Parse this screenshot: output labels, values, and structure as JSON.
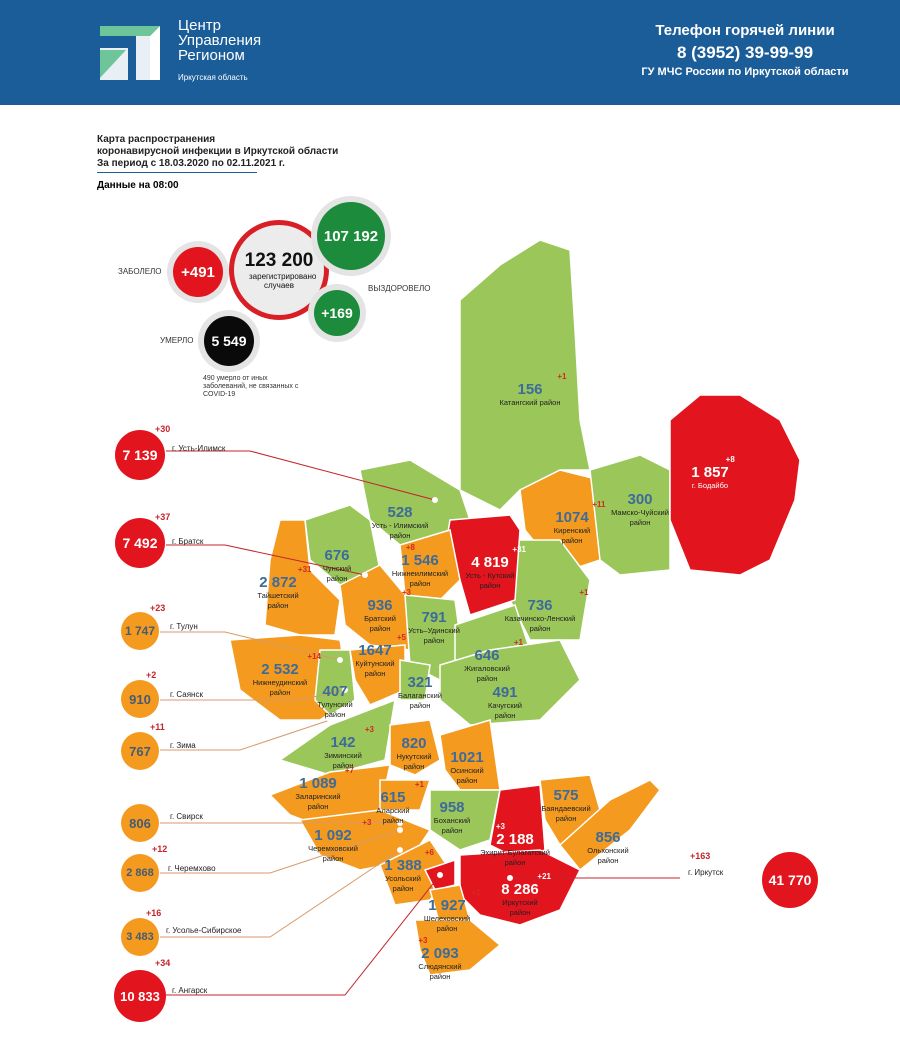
{
  "header": {
    "logo_lines": [
      "Центр",
      "Управления",
      "Регионом"
    ],
    "logo_sub": "Иркутская область",
    "hotline_title": "Телефон горячей линии",
    "hotline_phone": "8 (3952) 39-99-99",
    "hotline_org": "ГУ МЧС России по Иркутской области"
  },
  "title": {
    "line1": "Карта распространения",
    "line2": "коронавирусной инфекции в Иркутской области",
    "line3": "За период с 18.03.2020 по 02.11.2021 г.",
    "as_of": "Данные на 08:00"
  },
  "stats": {
    "sick_label": "ЗАБОЛЕЛО",
    "sick_delta": "+491",
    "total": "123 200",
    "total_caption": "зарегистрировано случаев",
    "recovered": "107 192",
    "recovered_delta": "+169",
    "recovered_label": "ВЫЗДОРОВЕЛО",
    "died_label": "УМЕРЛО",
    "died": "5 549",
    "died_note": "490 умерло от иных заболеваний, не связанных с COVID-19"
  },
  "colors": {
    "red": "#e2141e",
    "orange": "#f39a1f",
    "green": "#9ac65a",
    "header": "#1b5d98",
    "value": "#3d6b9a"
  },
  "cities": [
    {
      "name": "г. Усть-Илимск",
      "value": "7 139",
      "delta": "+30",
      "level": "red"
    },
    {
      "name": "г. Братск",
      "value": "7 492",
      "delta": "+37",
      "level": "red"
    },
    {
      "name": "г. Тулун",
      "value": "1 747",
      "delta": "+23",
      "level": "orange"
    },
    {
      "name": "г. Саянск",
      "value": "910",
      "delta": "+2",
      "level": "orange"
    },
    {
      "name": "г. Зима",
      "value": "767",
      "delta": "+11",
      "level": "orange"
    },
    {
      "name": "г. Свирск",
      "value": "806",
      "delta": "",
      "level": "orange"
    },
    {
      "name": "г. Черемхово",
      "value": "2 868",
      "delta": "+12",
      "level": "orange"
    },
    {
      "name": "г. Усолье-Сибирское",
      "value": "3 483",
      "delta": "+16",
      "level": "orange"
    },
    {
      "name": "г. Ангарск",
      "value": "10 833",
      "delta": "+34",
      "level": "red"
    },
    {
      "name": "г. Иркутск",
      "value": "41 770",
      "delta": "+163",
      "level": "red"
    }
  ],
  "districts": [
    {
      "name": "Катангский район",
      "value": "156",
      "delta": "+1",
      "level": "green"
    },
    {
      "name": "Усть - Илимский район",
      "value": "528",
      "delta": "",
      "level": "green"
    },
    {
      "name": "Киренский район",
      "value": "1074",
      "delta": "+11",
      "level": "orange"
    },
    {
      "name": "Мамско-Чуйский район",
      "value": "300",
      "delta": "",
      "level": "green"
    },
    {
      "name": "г. Бодайбо",
      "value": "1 857",
      "delta": "+8",
      "level": "red"
    },
    {
      "name": "Нижнеилимский район",
      "value": "1 546",
      "delta": "+8",
      "level": "orange"
    },
    {
      "name": "Усть - Кутский район",
      "value": "4 819",
      "delta": "+31",
      "level": "red"
    },
    {
      "name": "Чунский район",
      "value": "676",
      "delta": "",
      "level": "green"
    },
    {
      "name": "Братский район",
      "value": "936",
      "delta": "+3",
      "level": "orange"
    },
    {
      "name": "Тайшетский район",
      "value": "2 872",
      "delta": "+31",
      "level": "orange"
    },
    {
      "name": "Усть–Удинский район",
      "value": "791",
      "delta": "",
      "level": "green"
    },
    {
      "name": "Казачинско-Ленский район",
      "value": "736",
      "delta": "+1",
      "level": "green"
    },
    {
      "name": "Жигаловский район",
      "value": "646",
      "delta": "+1",
      "level": "green"
    },
    {
      "name": "Нижнеудинский район",
      "value": "2 532",
      "delta": "+14",
      "level": "orange"
    },
    {
      "name": "Куйтунский район",
      "value": "1647",
      "delta": "+5",
      "level": "orange"
    },
    {
      "name": "Тулунский район",
      "value": "407",
      "delta": "",
      "level": "green"
    },
    {
      "name": "Балаганский район",
      "value": "321",
      "delta": "",
      "level": "green"
    },
    {
      "name": "Качугский район",
      "value": "491",
      "delta": "",
      "level": "green"
    },
    {
      "name": "Зиминский район",
      "value": "142",
      "delta": "+3",
      "level": "green"
    },
    {
      "name": "Нукутский район",
      "value": "820",
      "delta": "",
      "level": "orange"
    },
    {
      "name": "Осинский район",
      "value": "1021",
      "delta": "",
      "level": "orange"
    },
    {
      "name": "Заларинский район",
      "value": "1 089",
      "delta": "+7",
      "level": "orange"
    },
    {
      "name": "Аларский район",
      "value": "615",
      "delta": "+1",
      "level": "orange"
    },
    {
      "name": "Боханский район",
      "value": "958",
      "delta": "",
      "level": "green"
    },
    {
      "name": "Эхирит-Булагатский район",
      "value": "2 188",
      "delta": "+3",
      "level": "red"
    },
    {
      "name": "Баяндаевский район",
      "value": "575",
      "delta": "",
      "level": "orange"
    },
    {
      "name": "Ольхонский район",
      "value": "856",
      "delta": "",
      "level": "orange"
    },
    {
      "name": "Черемховский район",
      "value": "1 092",
      "delta": "+3",
      "level": "orange"
    },
    {
      "name": "Усольский район",
      "value": "1 388",
      "delta": "+6",
      "level": "orange"
    },
    {
      "name": "Шелеховский район",
      "value": "1 927",
      "delta": "+2",
      "level": "orange"
    },
    {
      "name": "Иркутский район",
      "value": "8 286",
      "delta": "+21",
      "level": "red"
    },
    {
      "name": "Слюдянский район",
      "value": "2 093",
      "delta": "+3",
      "level": "orange"
    }
  ]
}
